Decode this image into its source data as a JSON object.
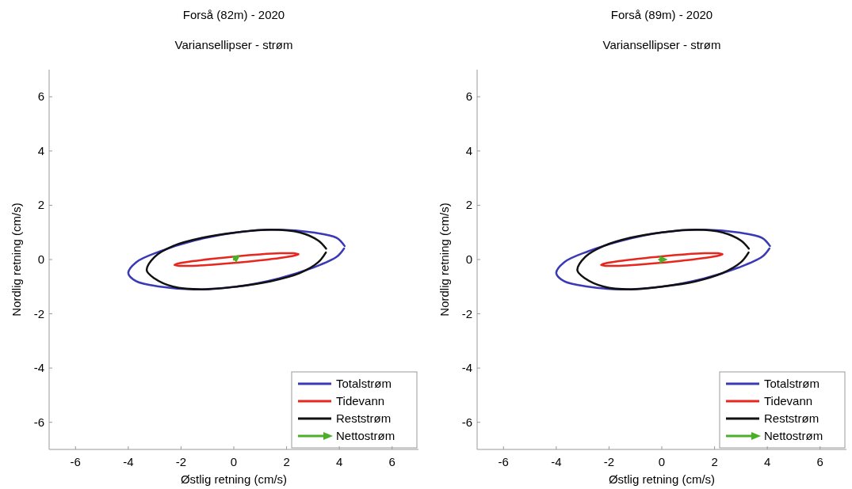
{
  "chart_data": [
    {
      "type": "line",
      "title": "Forså (82m) - 2020",
      "subtitle": "Variansellipser - strøm",
      "xlabel": "Østlig retning (cm/s)",
      "ylabel": "Nordlig retning (cm/s)",
      "xlim": [
        -7,
        7
      ],
      "ylim": [
        -7,
        7
      ],
      "xticks": [
        -6,
        -4,
        -2,
        0,
        2,
        4,
        6
      ],
      "yticks": [
        -6,
        -4,
        -2,
        0,
        2,
        4,
        6
      ],
      "grid": false,
      "legend": "bottom right",
      "marker": "none",
      "line_style": "solid",
      "series": [
        {
          "name": "Totalstrøm",
          "color": "#3a3ab8",
          "x": [
            4.2,
            3.9,
            3.0,
            1.7,
            0.1,
            -1.5,
            -2.8,
            -3.7,
            -4.0,
            -3.7,
            -2.8,
            -1.5,
            0.1,
            1.7,
            3.0,
            3.9,
            4.18
          ],
          "values": [
            0.5,
            0.8,
            1.0,
            1.1,
            1.0,
            0.7,
            0.3,
            -0.1,
            -0.5,
            -0.8,
            -1.0,
            -1.1,
            -1.0,
            -0.7,
            -0.3,
            0.1,
            0.41
          ]
        },
        {
          "name": "Tidevann",
          "color": "#e8261e",
          "x": [
            2.45,
            2.27,
            1.76,
            1.0,
            0.1,
            -0.8,
            -1.56,
            -2.07,
            -2.25,
            -2.07,
            -1.56,
            -0.8,
            0.1,
            1.0,
            1.76,
            2.27,
            2.44
          ],
          "values": [
            0.2,
            0.23,
            0.23,
            0.19,
            0.12,
            0.03,
            -0.06,
            -0.14,
            -0.2,
            -0.23,
            -0.23,
            -0.19,
            -0.12,
            -0.03,
            0.06,
            0.14,
            0.19
          ]
        },
        {
          "name": "Reststrøm",
          "color": "#111111",
          "x": [
            3.5,
            3.2,
            2.5,
            1.4,
            0.1,
            -1.2,
            -2.3,
            -3.0,
            -3.3,
            -3.0,
            -2.3,
            -1.2,
            0.1,
            1.4,
            2.5,
            3.2,
            3.49
          ],
          "values": [
            0.4,
            0.7,
            1.0,
            1.1,
            1.0,
            0.8,
            0.5,
            0.1,
            -0.4,
            -0.7,
            -1.0,
            -1.1,
            -1.0,
            -0.8,
            -0.5,
            -0.1,
            0.26
          ]
        },
        {
          "name": "Nettostrøm",
          "color": "#4caf2a",
          "x": [
            0,
            0.15
          ],
          "values": [
            0,
            0.1
          ]
        }
      ]
    },
    {
      "type": "line",
      "title": "Forså (89m) - 2020",
      "subtitle": "Variansellipser - strøm",
      "xlabel": "Østlig retning (cm/s)",
      "ylabel": "Nordlig retning (cm/s)",
      "xlim": [
        -7,
        7
      ],
      "ylim": [
        -7,
        7
      ],
      "xticks": [
        -6,
        -4,
        -2,
        0,
        2,
        4,
        6
      ],
      "yticks": [
        -6,
        -4,
        -2,
        0,
        2,
        4,
        6
      ],
      "grid": false,
      "legend": "bottom right",
      "marker": "none",
      "line_style": "solid",
      "series": [
        {
          "name": "Totalstrøm",
          "color": "#3a3ab8",
          "x": [
            4.1,
            3.8,
            2.9,
            1.6,
            0.0,
            -1.5,
            -2.8,
            -3.7,
            -4.0,
            -3.7,
            -2.8,
            -1.5,
            0.0,
            1.6,
            2.9,
            3.8,
            4.08
          ],
          "values": [
            0.5,
            0.8,
            1.0,
            1.1,
            1.0,
            0.7,
            0.3,
            -0.1,
            -0.5,
            -0.8,
            -1.0,
            -1.1,
            -1.0,
            -0.7,
            -0.3,
            0.1,
            0.41
          ]
        },
        {
          "name": "Tidevann",
          "color": "#e8261e",
          "x": [
            2.3,
            2.13,
            1.63,
            0.88,
            0,
            -0.88,
            -1.63,
            -2.13,
            -2.3,
            -2.13,
            -1.63,
            -0.88,
            0,
            0.88,
            1.63,
            2.13,
            2.29
          ],
          "values": [
            0.2,
            0.23,
            0.23,
            0.19,
            0.12,
            0.03,
            -0.06,
            -0.14,
            -0.2,
            -0.23,
            -0.23,
            -0.19,
            -0.12,
            -0.03,
            0.06,
            0.14,
            0.19
          ]
        },
        {
          "name": "Reststrøm",
          "color": "#111111",
          "x": [
            3.3,
            3.0,
            2.3,
            1.3,
            0.0,
            -1.2,
            -2.2,
            -2.9,
            -3.2,
            -2.9,
            -2.2,
            -1.2,
            0.0,
            1.3,
            2.3,
            3.0,
            3.29
          ],
          "values": [
            0.4,
            0.7,
            1.0,
            1.1,
            1.0,
            0.8,
            0.5,
            0.1,
            -0.4,
            -0.7,
            -1.0,
            -1.1,
            -1.0,
            -0.8,
            -0.5,
            -0.1,
            0.26
          ]
        },
        {
          "name": "Nettostrøm",
          "color": "#4caf2a",
          "x": [
            -0.1,
            0.1
          ],
          "values": [
            0,
            0
          ]
        }
      ]
    }
  ]
}
